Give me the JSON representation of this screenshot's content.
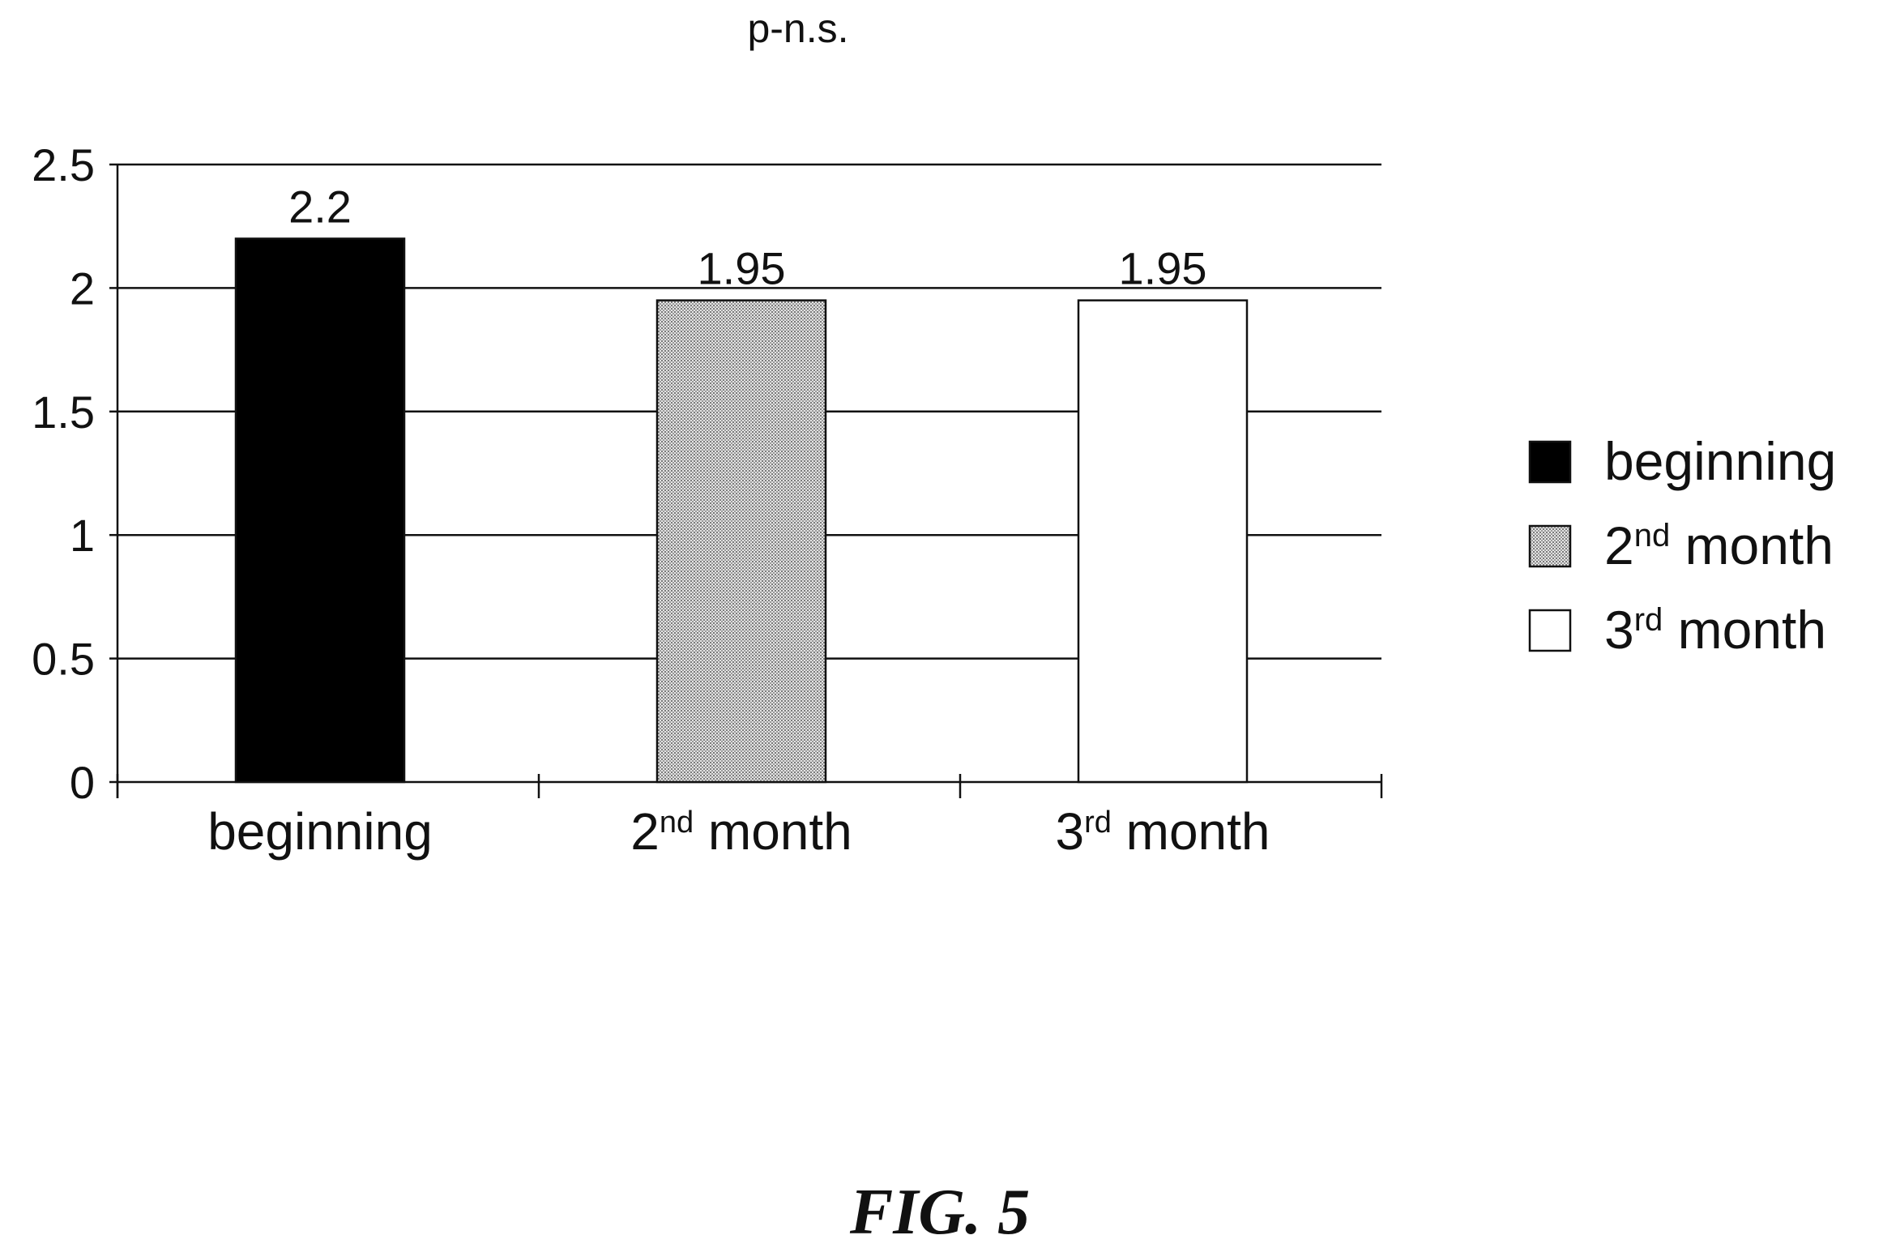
{
  "chart_data": {
    "type": "bar",
    "title": "p-n.s.",
    "xlabel": "",
    "ylabel": "",
    "ylim": [
      0,
      2.5
    ],
    "yticks": [
      "0",
      "0.5",
      "1",
      "1.5",
      "2",
      "2.5"
    ],
    "grid": true,
    "legend_position": "right",
    "categories": [
      {
        "base": "beginning",
        "sup": "",
        "rest": ""
      },
      {
        "base": "2",
        "sup": "nd",
        "rest": " month"
      },
      {
        "base": "3",
        "sup": "rd",
        "rest": " month"
      }
    ],
    "series": [
      {
        "fill": "solid",
        "color": "#000000",
        "value": 2.2,
        "label": "2.2"
      },
      {
        "fill": "dotted",
        "color": "#cfcfcf",
        "value": 1.95,
        "label": "1.95"
      },
      {
        "fill": "empty",
        "color": "#ffffff",
        "value": 1.95,
        "label": "1.95"
      }
    ]
  },
  "figure_caption": "FIG. 5"
}
